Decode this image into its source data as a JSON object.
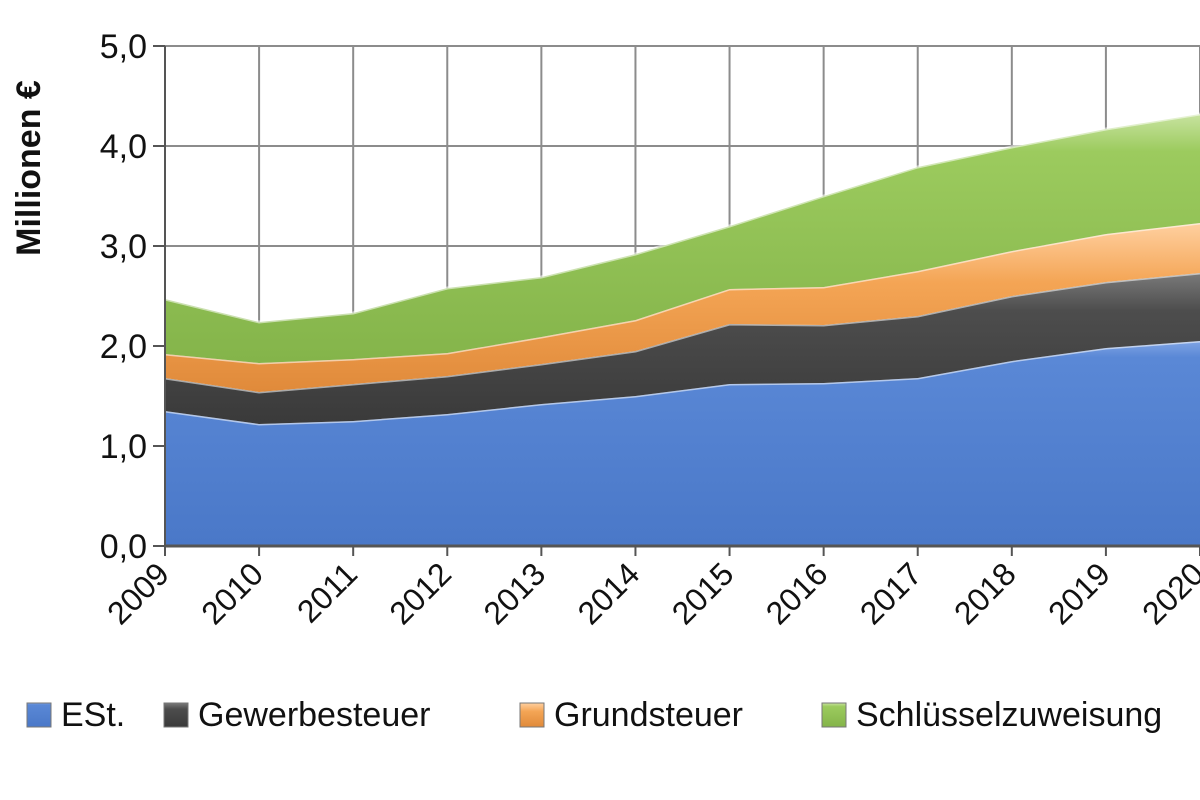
{
  "chart_data": {
    "type": "area",
    "stacked": true,
    "title": "",
    "xlabel": "",
    "ylabel": "Millionen €",
    "ylim": [
      0,
      5
    ],
    "yticks": [
      "0,0",
      "1,0",
      "2,0",
      "3,0",
      "4,0",
      "5,0"
    ],
    "categories": [
      "2009",
      "2010",
      "2011",
      "2012",
      "2013",
      "2014",
      "2015",
      "2016",
      "2017",
      "2018",
      "2019",
      "2020"
    ],
    "grid": true,
    "legend_position": "bottom",
    "series": [
      {
        "name": "ESt.",
        "color": "#4f7fd0",
        "values": [
          1.35,
          1.22,
          1.25,
          1.32,
          1.42,
          1.5,
          1.62,
          1.63,
          1.68,
          1.85,
          1.98,
          2.05
        ]
      },
      {
        "name": "Gewerbesteuer",
        "color": "#4a4a4a",
        "values": [
          0.33,
          0.32,
          0.37,
          0.38,
          0.4,
          0.45,
          0.6,
          0.58,
          0.62,
          0.65,
          0.66,
          0.68
        ]
      },
      {
        "name": "Grundsteuer",
        "color": "#f0a050",
        "values": [
          0.24,
          0.29,
          0.25,
          0.23,
          0.27,
          0.31,
          0.35,
          0.38,
          0.45,
          0.45,
          0.48,
          0.5
        ]
      },
      {
        "name": "Schlüsselzuweisung",
        "color": "#8fbc4f",
        "values": [
          0.55,
          0.41,
          0.46,
          0.65,
          0.6,
          0.66,
          0.63,
          0.91,
          1.04,
          1.04,
          1.05,
          1.09
        ]
      }
    ]
  }
}
